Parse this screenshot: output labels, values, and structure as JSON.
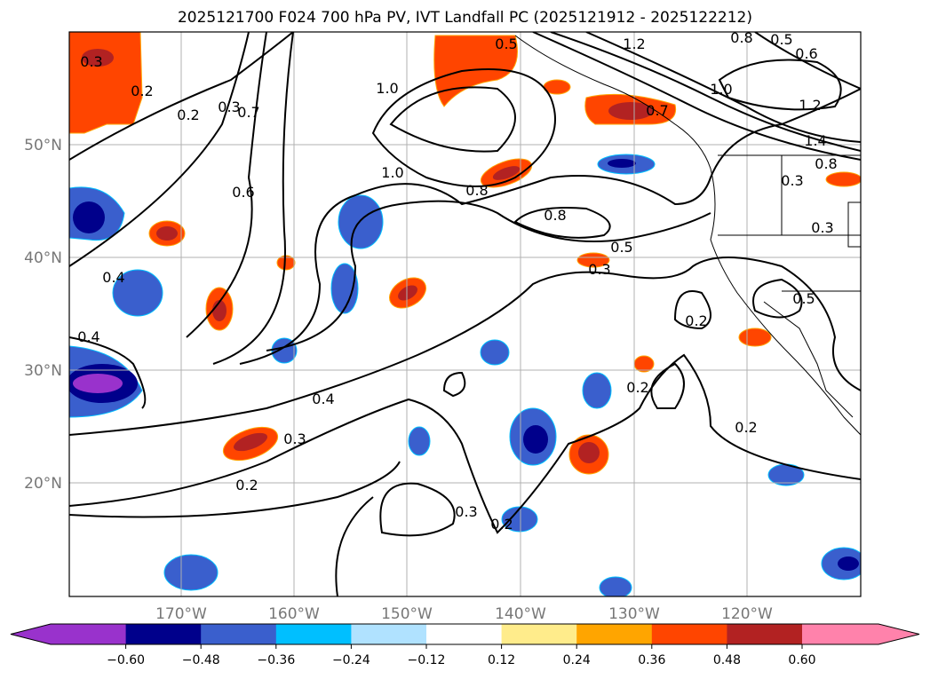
{
  "title": "2025121700 F024 700 hPa PV, IVT Landfall PC (2025121912 - 2025122212)",
  "lat_labels": [
    "50°N",
    "40°N",
    "30°N",
    "20°N"
  ],
  "lon_labels": [
    "170°W",
    "160°W",
    "150°W",
    "140°W",
    "130°W",
    "120°W"
  ],
  "colorbar": {
    "ticks": [
      "−0.60",
      "−0.48",
      "−0.36",
      "−0.24",
      "−0.12",
      "0.12",
      "0.24",
      "0.36",
      "0.48",
      "0.60"
    ],
    "colors": [
      "#9932cc",
      "#00008b",
      "#3a5fcd",
      "#00bfff",
      "#b0e2ff",
      "#ffffff",
      "#ffec8b",
      "#ffa500",
      "#ff4500",
      "#b22222",
      "#ff82ab"
    ]
  },
  "contour_labels": [
    "0.3",
    "0.2",
    "0.2",
    "0.3",
    "0.7",
    "0.6",
    "1.0",
    "0.5",
    "1.2",
    "0.8",
    "0.5",
    "0.6",
    "1.0",
    "0.7",
    "1.2",
    "1.4",
    "0.8",
    "0.3",
    "1.0",
    "0.8",
    "0.8",
    "0.5",
    "0.3",
    "0.3",
    "0.2",
    "0.5",
    "0.2",
    "0.4",
    "0.4",
    "0.4",
    "0.3",
    "0.2",
    "0.3",
    "0.2",
    "0.2"
  ]
}
